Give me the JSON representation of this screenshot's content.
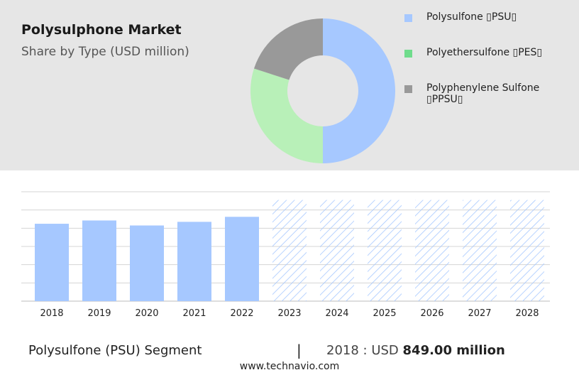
{
  "header": {
    "title": "Polysulphone Market",
    "subtitle": "Share by Type (USD million)"
  },
  "colors": {
    "psu": "#a6c8ff",
    "pes": "#b8f0b8",
    "ppsu": "#999999",
    "psu_legend": "#a6c8ff",
    "pes_legend": "#6fdc8c",
    "ppsu_legend": "#999999",
    "panel_bg": "#e6e6e6",
    "hatch": "#a6c8ff"
  },
  "chart_data": [
    {
      "type": "pie",
      "style": "donut",
      "series": [
        {
          "name": "Polysulfone  PSU ",
          "value": 50
        },
        {
          "name": "Polyethersulfone  PES ",
          "value": 30
        },
        {
          "name": "Polyphenylene Sulfone  PPSU ",
          "value": 20
        }
      ],
      "legend": {
        "placement": "right",
        "entries": [
          "Polysulfone ▯PSU▯",
          "Polyethersulfone ▯PES▯",
          "Polyphenylene Sulfone ▯PPSU▯"
        ]
      }
    },
    {
      "type": "bar",
      "categories": [
        "2018",
        "2019",
        "2020",
        "2021",
        "2022",
        "2023",
        "2024",
        "2025",
        "2026",
        "2027",
        "2028"
      ],
      "values": [
        849.0,
        885,
        830,
        870,
        925,
        null,
        null,
        null,
        null,
        null,
        null
      ],
      "forecast_categories": [
        "2023",
        "2024",
        "2025",
        "2026",
        "2027",
        "2028"
      ],
      "forecast_display_value": 1110,
      "ylim": [
        0,
        1200
      ],
      "grid": true
    }
  ],
  "footer": {
    "segment": "Polysulfone (PSU) Segment",
    "separator": "|",
    "year_label": "2018 : USD",
    "value": "849.00 million",
    "url": "www.technavio.com"
  }
}
